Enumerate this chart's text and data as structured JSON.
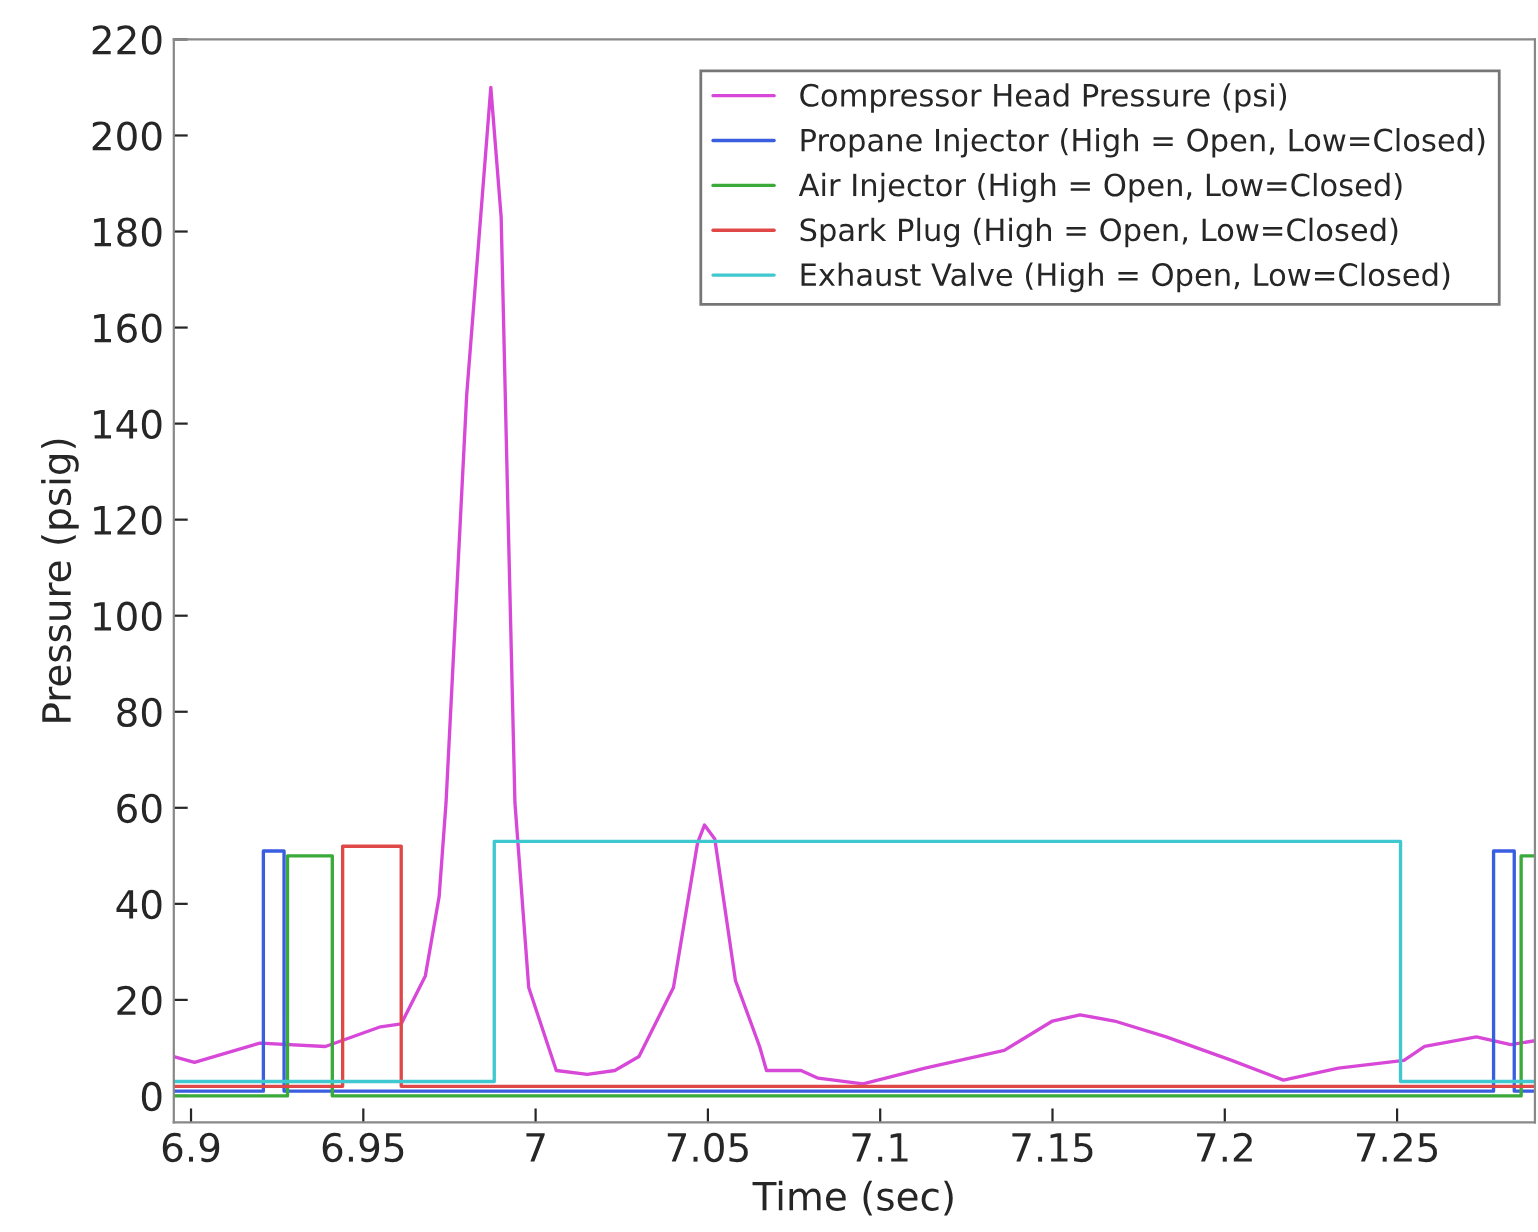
{
  "chart_data": {
    "type": "line",
    "xlabel": "Time (sec)",
    "ylabel": "Pressure (psig)",
    "xlim": [
      6.895,
      7.29
    ],
    "xticks": [
      6.9,
      6.95,
      7,
      7.05,
      7.1,
      7.15,
      7.2,
      7.25
    ],
    "ylim": [
      -5.5,
      220
    ],
    "yticks": [
      0,
      20,
      40,
      60,
      80,
      100,
      120,
      140,
      160,
      180,
      200,
      220
    ],
    "grid": false,
    "legend": "top right",
    "series": [
      {
        "name": "Compressor Head Pressure (psi)",
        "color": "#d848d8",
        "x": [
          6.895,
          6.901,
          6.92,
          6.939,
          6.955,
          6.961,
          6.968,
          6.972,
          6.974,
          6.98,
          6.987,
          6.99,
          6.992,
          6.994,
          6.998,
          7.006,
          7.015,
          7.023,
          7.03,
          7.04,
          7.047,
          7.049,
          7.052,
          7.058,
          7.065,
          7.067,
          7.077,
          7.082,
          7.095,
          7.113,
          7.136,
          7.15,
          7.158,
          7.168,
          7.183,
          7.202,
          7.217,
          7.233,
          7.252,
          7.258,
          7.273,
          7.283,
          7.29
        ],
        "values": [
          8.2,
          7,
          11,
          10.3,
          14.4,
          15,
          25,
          41.5,
          61,
          146,
          210,
          183,
          121,
          61,
          22.6,
          5.3,
          4.5,
          5.3,
          8.2,
          22.6,
          52.7,
          56.4,
          53.5,
          24,
          10.3,
          5.3,
          5.3,
          3.7,
          2.5,
          5.8,
          9.5,
          15.6,
          16.9,
          15.6,
          12.3,
          7.4,
          3.3,
          5.8,
          7.4,
          10.3,
          12.3,
          10.7,
          11.5
        ]
      },
      {
        "name": "Propane Injector (High = Open, Low=Closed)",
        "color": "#3a5ee0",
        "type": "step",
        "x": [
          6.895,
          6.921,
          6.927,
          7.278,
          7.284,
          7.29
        ],
        "values": [
          1,
          51,
          1,
          51,
          1,
          1
        ]
      },
      {
        "name": "Air Injector (High = Open, Low=Closed)",
        "color": "#3aaa3a",
        "type": "step",
        "x": [
          6.895,
          6.928,
          6.941,
          7.286,
          7.29
        ],
        "values": [
          0,
          50,
          0,
          50,
          50
        ]
      },
      {
        "name": "Spark Plug (High = Open, Low=Closed)",
        "color": "#e04848",
        "type": "step",
        "x": [
          6.895,
          6.944,
          6.961,
          7.29
        ],
        "values": [
          2,
          52,
          2,
          2
        ]
      },
      {
        "name": "Exhaust Valve (High = Open, Low=Closed)",
        "color": "#40c8d0",
        "type": "step",
        "x": [
          6.895,
          6.988,
          7.251,
          7.29
        ],
        "values": [
          3,
          53,
          3,
          3
        ]
      }
    ]
  }
}
